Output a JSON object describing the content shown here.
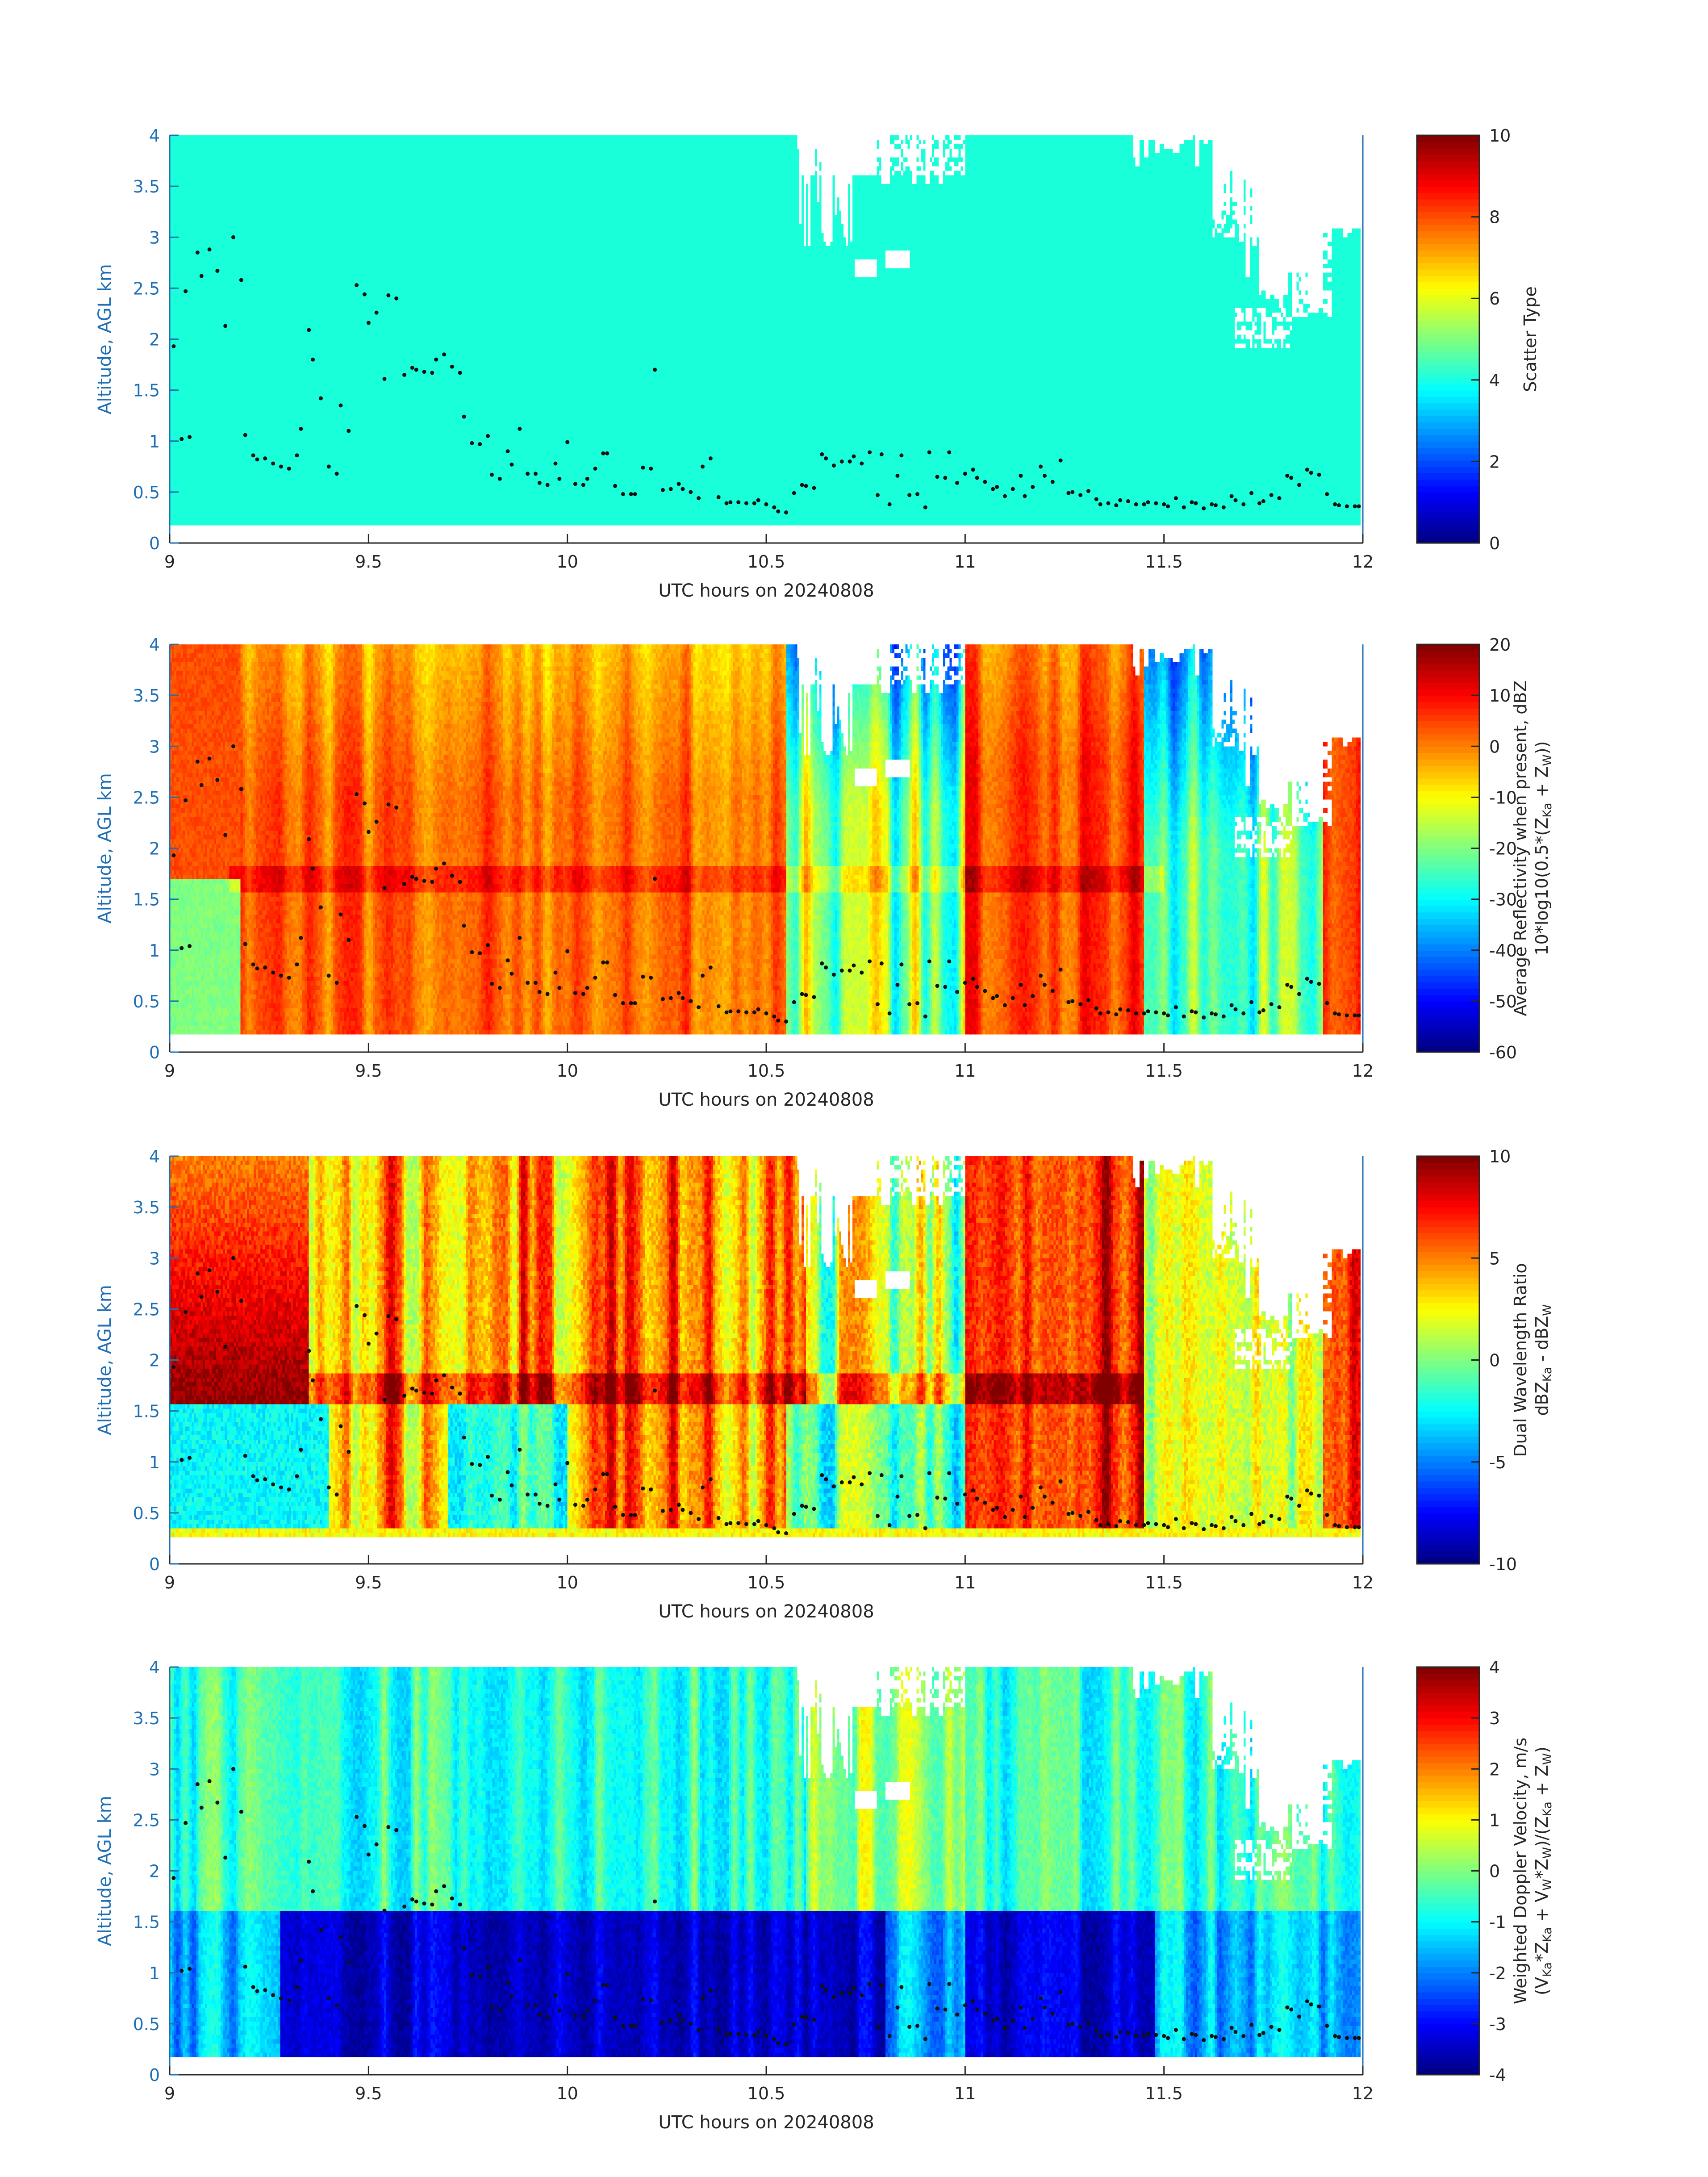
{
  "colors": {
    "axis_blue": "#1f6fb4",
    "text_dark": "#262626",
    "scatter_fill": "#19ffd9",
    "missing": "#ffffff",
    "marker": "#111111"
  },
  "colormap": "jet",
  "chart_data": [
    {
      "type": "heatmap",
      "xlabel": "UTC hours on 20240808",
      "ylabel": "Altitude, AGL km",
      "xlim": [
        9,
        12
      ],
      "ylim": [
        0,
        4
      ],
      "xticks": [
        "9",
        "9.5",
        "10",
        "10.5",
        "11",
        "11.5",
        "12"
      ],
      "yticks": [
        "0",
        "0.5",
        "1",
        "1.5",
        "2",
        "2.5",
        "3",
        "3.5",
        "4"
      ],
      "colorbar": {
        "label": [
          "Scatter Type"
        ],
        "range": [
          0,
          10
        ],
        "ticks": [
          "0",
          "2",
          "4",
          "6",
          "8",
          "10"
        ]
      },
      "field": "scatter_type",
      "dominant_value": 4.2
    },
    {
      "type": "heatmap",
      "xlabel": "UTC hours on 20240808",
      "ylabel": "Altitude, AGL km",
      "xlim": [
        9,
        12
      ],
      "ylim": [
        0,
        4
      ],
      "xticks": [
        "9",
        "9.5",
        "10",
        "10.5",
        "11",
        "11.5",
        "12"
      ],
      "yticks": [
        "0",
        "0.5",
        "1",
        "1.5",
        "2",
        "2.5",
        "3",
        "3.5",
        "4"
      ],
      "colorbar": {
        "label": [
          "Average Reflectivity when present, dBZ",
          "10*log10(0.5*(Z",
          "Ka",
          " + Z",
          "W",
          "))"
        ],
        "range": [
          -60,
          20
        ],
        "ticks": [
          "-60",
          "-50",
          "-40",
          "-30",
          "-20",
          "-10",
          "0",
          "10",
          "20"
        ]
      },
      "field": "reflectivity"
    },
    {
      "type": "heatmap",
      "xlabel": "UTC hours on 20240808",
      "ylabel": "Altitude, AGL km",
      "xlim": [
        9,
        12
      ],
      "ylim": [
        0,
        4
      ],
      "xticks": [
        "9",
        "9.5",
        "10",
        "10.5",
        "11",
        "11.5",
        "12"
      ],
      "yticks": [
        "0",
        "0.5",
        "1",
        "1.5",
        "2",
        "2.5",
        "3",
        "3.5",
        "4"
      ],
      "colorbar": {
        "label": [
          "Dual Wavelength Ratio",
          "dBZ",
          "Ka",
          " - dBZ",
          "W"
        ],
        "range": [
          -10,
          10
        ],
        "ticks": [
          "-10",
          "-5",
          "0",
          "5",
          "10"
        ]
      },
      "field": "dwr"
    },
    {
      "type": "heatmap",
      "xlabel": "UTC hours on 20240808",
      "ylabel": "Altitude, AGL km",
      "xlim": [
        9,
        12
      ],
      "ylim": [
        0,
        4
      ],
      "xticks": [
        "9",
        "9.5",
        "10",
        "10.5",
        "11",
        "11.5",
        "12"
      ],
      "yticks": [
        "0",
        "0.5",
        "1",
        "1.5",
        "2",
        "2.5",
        "3",
        "3.5",
        "4"
      ],
      "colorbar": {
        "label": [
          "Weighted Doppler Velocity, m/s",
          "(V",
          "Ka",
          "*Z",
          "Ka",
          " + V",
          "W",
          "*Z",
          "W",
          ")/(Z",
          "Ka",
          " + Z",
          "W",
          ")"
        ],
        "range": [
          -4,
          4
        ],
        "ticks": [
          "-4",
          "-3",
          "-2",
          "-1",
          "0",
          "1",
          "2",
          "3",
          "4"
        ]
      },
      "field": "doppler"
    }
  ],
  "overlay": {
    "name": "cloud base points",
    "points": [
      [
        9.01,
        1.93
      ],
      [
        9.03,
        1.02
      ],
      [
        9.04,
        2.47
      ],
      [
        9.05,
        1.04
      ],
      [
        9.07,
        2.85
      ],
      [
        9.08,
        2.62
      ],
      [
        9.1,
        2.88
      ],
      [
        9.12,
        2.67
      ],
      [
        9.14,
        2.13
      ],
      [
        9.16,
        3.0
      ],
      [
        9.18,
        2.58
      ],
      [
        9.19,
        1.06
      ],
      [
        9.21,
        0.86
      ],
      [
        9.22,
        0.82
      ],
      [
        9.24,
        0.83
      ],
      [
        9.26,
        0.78
      ],
      [
        9.28,
        0.75
      ],
      [
        9.3,
        0.73
      ],
      [
        9.32,
        0.86
      ],
      [
        9.33,
        1.12
      ],
      [
        9.35,
        2.09
      ],
      [
        9.36,
        1.8
      ],
      [
        9.38,
        1.42
      ],
      [
        9.4,
        0.75
      ],
      [
        9.42,
        0.68
      ],
      [
        9.43,
        1.35
      ],
      [
        9.45,
        1.1
      ],
      [
        9.47,
        2.53
      ],
      [
        9.49,
        2.44
      ],
      [
        9.5,
        2.16
      ],
      [
        9.52,
        2.26
      ],
      [
        9.54,
        1.61
      ],
      [
        9.55,
        2.43
      ],
      [
        9.57,
        2.4
      ],
      [
        9.59,
        1.65
      ],
      [
        9.61,
        1.72
      ],
      [
        9.62,
        1.7
      ],
      [
        9.64,
        1.68
      ],
      [
        9.66,
        1.67
      ],
      [
        9.67,
        1.8
      ],
      [
        9.69,
        1.85
      ],
      [
        9.71,
        1.73
      ],
      [
        9.73,
        1.67
      ],
      [
        9.74,
        1.24
      ],
      [
        9.76,
        0.98
      ],
      [
        9.78,
        0.97
      ],
      [
        9.8,
        1.05
      ],
      [
        9.81,
        0.67
      ],
      [
        9.83,
        0.63
      ],
      [
        9.85,
        0.9
      ],
      [
        9.86,
        0.77
      ],
      [
        9.88,
        1.12
      ],
      [
        9.9,
        0.68
      ],
      [
        9.92,
        0.68
      ],
      [
        9.93,
        0.59
      ],
      [
        9.95,
        0.57
      ],
      [
        9.97,
        0.78
      ],
      [
        9.98,
        0.63
      ],
      [
        10.0,
        0.99
      ],
      [
        10.02,
        0.58
      ],
      [
        10.04,
        0.57
      ],
      [
        10.05,
        0.63
      ],
      [
        10.07,
        0.73
      ],
      [
        10.09,
        0.88
      ],
      [
        10.1,
        0.88
      ],
      [
        10.12,
        0.56
      ],
      [
        10.14,
        0.48
      ],
      [
        10.16,
        0.48
      ],
      [
        10.17,
        0.48
      ],
      [
        10.19,
        0.74
      ],
      [
        10.21,
        0.73
      ],
      [
        10.22,
        1.7
      ],
      [
        10.24,
        0.52
      ],
      [
        10.26,
        0.53
      ],
      [
        10.28,
        0.58
      ],
      [
        10.29,
        0.53
      ],
      [
        10.31,
        0.5
      ],
      [
        10.33,
        0.44
      ],
      [
        10.34,
        0.75
      ],
      [
        10.36,
        0.83
      ],
      [
        10.38,
        0.45
      ],
      [
        10.4,
        0.39
      ],
      [
        10.41,
        0.4
      ],
      [
        10.43,
        0.4
      ],
      [
        10.45,
        0.39
      ],
      [
        10.47,
        0.39
      ],
      [
        10.48,
        0.42
      ],
      [
        10.5,
        0.38
      ],
      [
        10.52,
        0.35
      ],
      [
        10.53,
        0.31
      ],
      [
        10.55,
        0.3
      ],
      [
        10.57,
        0.49
      ],
      [
        10.59,
        0.57
      ],
      [
        10.6,
        0.56
      ],
      [
        10.62,
        0.54
      ],
      [
        10.64,
        0.87
      ],
      [
        10.65,
        0.83
      ],
      [
        10.67,
        0.76
      ],
      [
        10.69,
        0.8
      ],
      [
        10.71,
        0.8
      ],
      [
        10.72,
        0.85
      ],
      [
        10.74,
        0.78
      ],
      [
        10.76,
        0.89
      ],
      [
        10.78,
        0.47
      ],
      [
        10.79,
        0.87
      ],
      [
        10.81,
        0.38
      ],
      [
        10.83,
        0.66
      ],
      [
        10.84,
        0.86
      ],
      [
        10.86,
        0.47
      ],
      [
        10.88,
        0.48
      ],
      [
        10.9,
        0.35
      ],
      [
        10.91,
        0.89
      ],
      [
        10.93,
        0.65
      ],
      [
        10.95,
        0.64
      ],
      [
        10.96,
        0.89
      ],
      [
        10.98,
        0.59
      ],
      [
        11.0,
        0.68
      ],
      [
        11.02,
        0.72
      ],
      [
        11.03,
        0.64
      ],
      [
        11.05,
        0.6
      ],
      [
        11.07,
        0.53
      ],
      [
        11.08,
        0.55
      ],
      [
        11.1,
        0.46
      ],
      [
        11.12,
        0.53
      ],
      [
        11.14,
        0.66
      ],
      [
        11.15,
        0.46
      ],
      [
        11.17,
        0.55
      ],
      [
        11.19,
        0.75
      ],
      [
        11.2,
        0.66
      ],
      [
        11.22,
        0.6
      ],
      [
        11.24,
        0.81
      ],
      [
        11.26,
        0.49
      ],
      [
        11.27,
        0.5
      ],
      [
        11.29,
        0.47
      ],
      [
        11.31,
        0.51
      ],
      [
        11.33,
        0.43
      ],
      [
        11.34,
        0.38
      ],
      [
        11.36,
        0.39
      ],
      [
        11.38,
        0.37
      ],
      [
        11.39,
        0.42
      ],
      [
        11.41,
        0.41
      ],
      [
        11.43,
        0.38
      ],
      [
        11.45,
        0.38
      ],
      [
        11.46,
        0.4
      ],
      [
        11.48,
        0.39
      ],
      [
        11.5,
        0.38
      ],
      [
        11.51,
        0.36
      ],
      [
        11.53,
        0.44
      ],
      [
        11.55,
        0.35
      ],
      [
        11.57,
        0.4
      ],
      [
        11.58,
        0.39
      ],
      [
        11.6,
        0.34
      ],
      [
        11.62,
        0.38
      ],
      [
        11.63,
        0.37
      ],
      [
        11.65,
        0.35
      ],
      [
        11.67,
        0.46
      ],
      [
        11.68,
        0.42
      ],
      [
        11.7,
        0.38
      ],
      [
        11.72,
        0.49
      ],
      [
        11.74,
        0.39
      ],
      [
        11.75,
        0.41
      ],
      [
        11.77,
        0.47
      ],
      [
        11.79,
        0.44
      ],
      [
        11.81,
        0.66
      ],
      [
        11.82,
        0.64
      ],
      [
        11.84,
        0.57
      ],
      [
        11.86,
        0.72
      ],
      [
        11.87,
        0.69
      ],
      [
        11.89,
        0.67
      ],
      [
        11.91,
        0.48
      ],
      [
        11.93,
        0.38
      ],
      [
        11.94,
        0.37
      ],
      [
        11.96,
        0.36
      ],
      [
        11.98,
        0.36
      ],
      [
        11.99,
        0.36
      ]
    ]
  }
}
